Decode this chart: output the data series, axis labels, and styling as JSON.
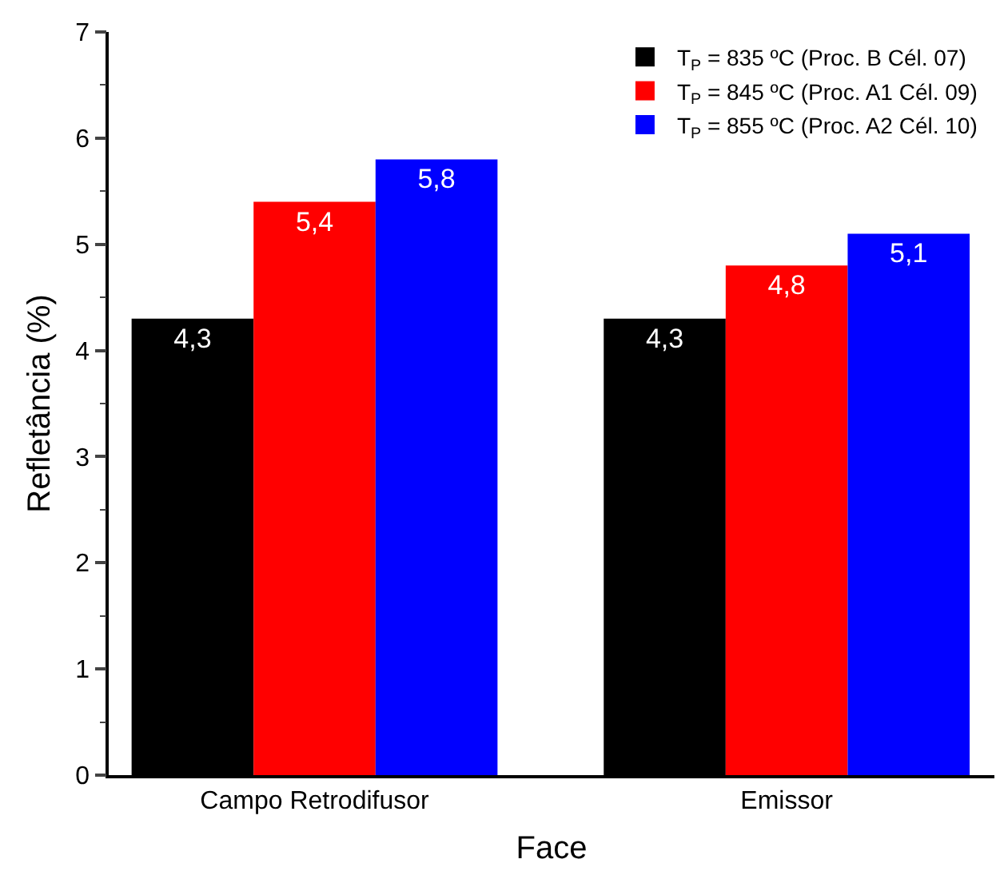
{
  "chart_data": {
    "type": "bar",
    "xlabel": "Face",
    "ylabel": "Refletância (%)",
    "categories": [
      "Campo Retrodifusor",
      "Emissor"
    ],
    "series": [
      {
        "name": "T$_{P}$ = 835 ºC (Proc. B Cél. 07)",
        "color": "#000000",
        "values": [
          4.3,
          4.3
        ],
        "value_labels": [
          "4,3",
          "4,3"
        ]
      },
      {
        "name": "T$_{P}$ = 845 ºC (Proc. A1 Cél. 09)",
        "color": "#ff0000",
        "values": [
          5.4,
          4.8
        ],
        "value_labels": [
          "5,4",
          "4,8"
        ]
      },
      {
        "name": "T$_{P}$ = 855 ºC (Proc. A2 Cél. 10)",
        "color": "#0000ff",
        "values": [
          5.8,
          5.1
        ],
        "value_labels": [
          "5,8",
          "5,1"
        ]
      }
    ],
    "ylim": [
      0,
      7
    ],
    "yticks": [
      0,
      1,
      2,
      3,
      4,
      5,
      6,
      7
    ],
    "grid": false,
    "legend": "top right"
  }
}
